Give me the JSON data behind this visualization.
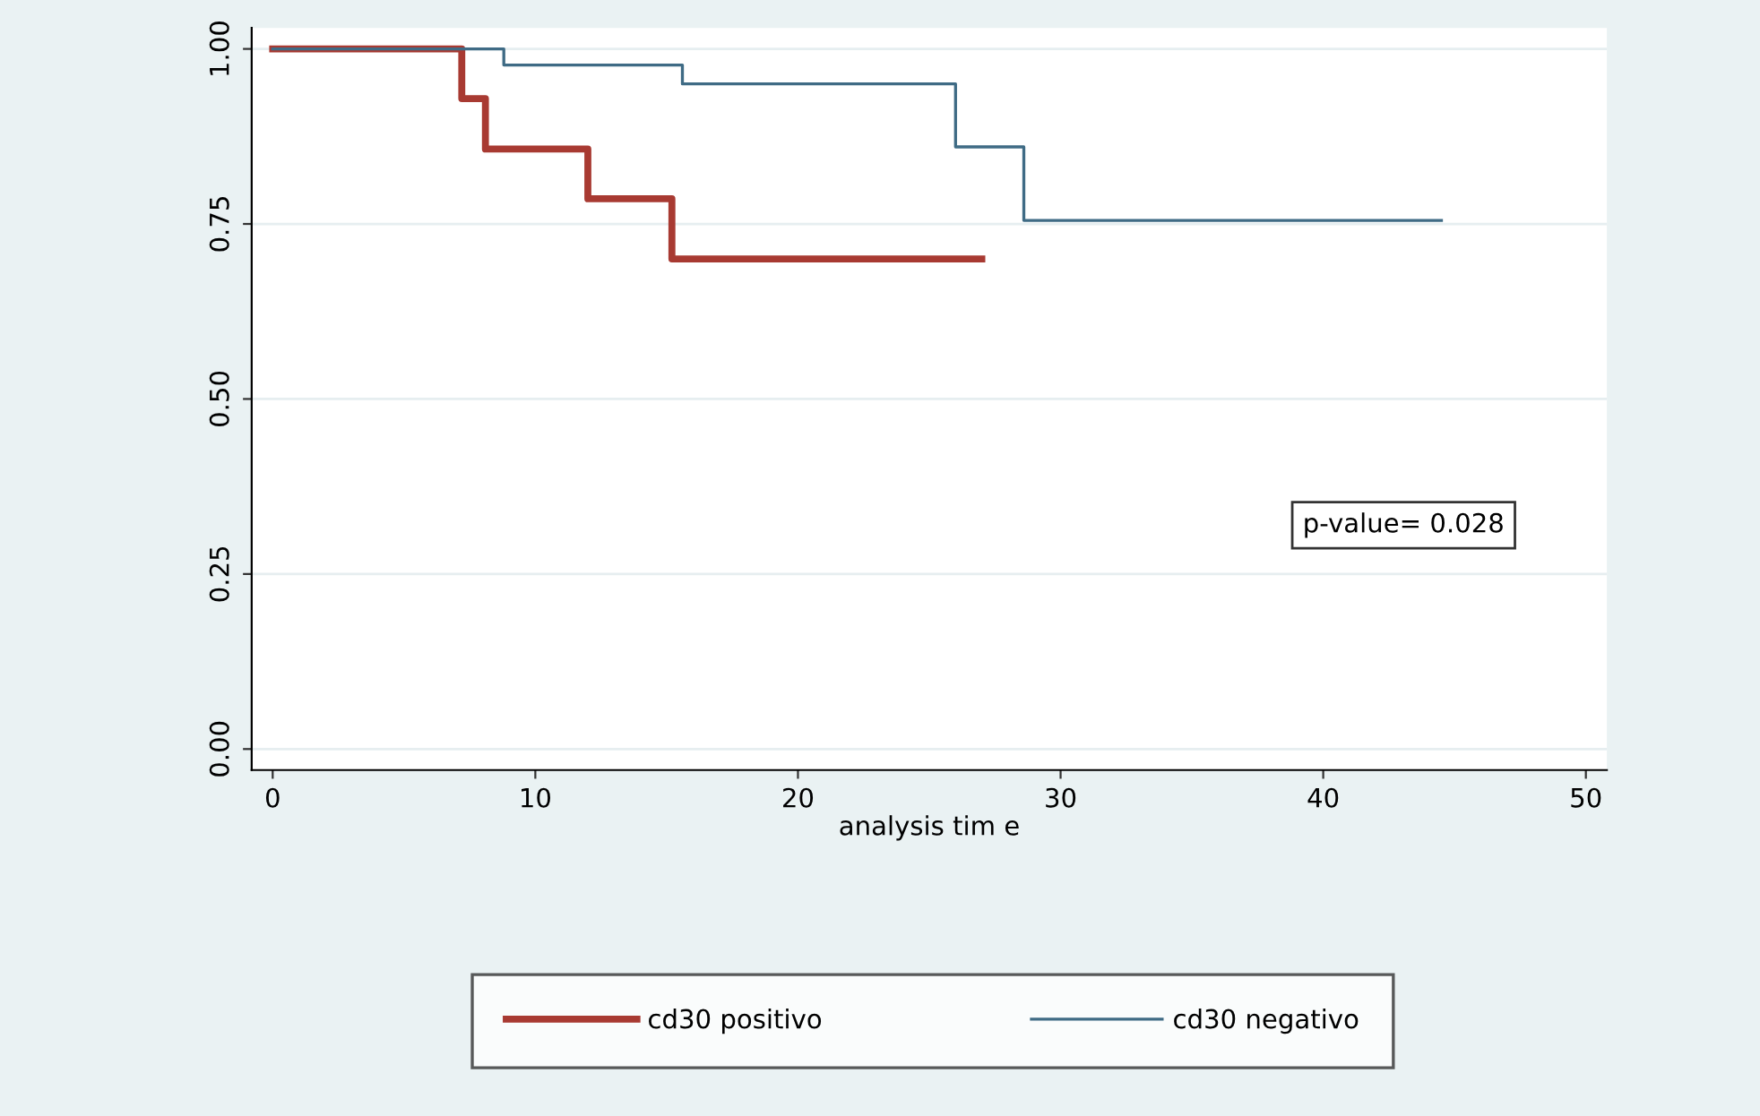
{
  "chart_data": {
    "type": "step",
    "xlabel": "analysis tim e",
    "series": [
      {
        "name": "cd30 positivo",
        "color": "#a83a32",
        "x": [
          0,
          7.2,
          8.1,
          12.0,
          15.2,
          27.0
        ],
        "values": [
          1.0,
          0.929,
          0.857,
          0.786,
          0.7,
          0.7
        ]
      },
      {
        "name": "cd30 negativo",
        "color": "#3f6b85",
        "x": [
          0,
          8.8,
          15.6,
          26.0,
          28.6,
          44.5
        ],
        "values": [
          1.0,
          0.977,
          0.95,
          0.86,
          0.755,
          0.755
        ]
      }
    ],
    "xlim": [
      -0.8,
      50.8
    ],
    "xticks": [
      0,
      10,
      20,
      30,
      40,
      50
    ],
    "ylim": [
      -0.03,
      1.03
    ],
    "yticks": [
      {
        "value": 0,
        "label": "0.00"
      },
      {
        "value": 0.25,
        "label": "0.25"
      },
      {
        "value": 0.5,
        "label": "0.50"
      },
      {
        "value": 0.75,
        "label": "0.75"
      },
      {
        "value": 1,
        "label": "1.00"
      }
    ],
    "grid": "y",
    "legend": "bottom",
    "annotations": [
      "p-value= 0.028"
    ]
  }
}
